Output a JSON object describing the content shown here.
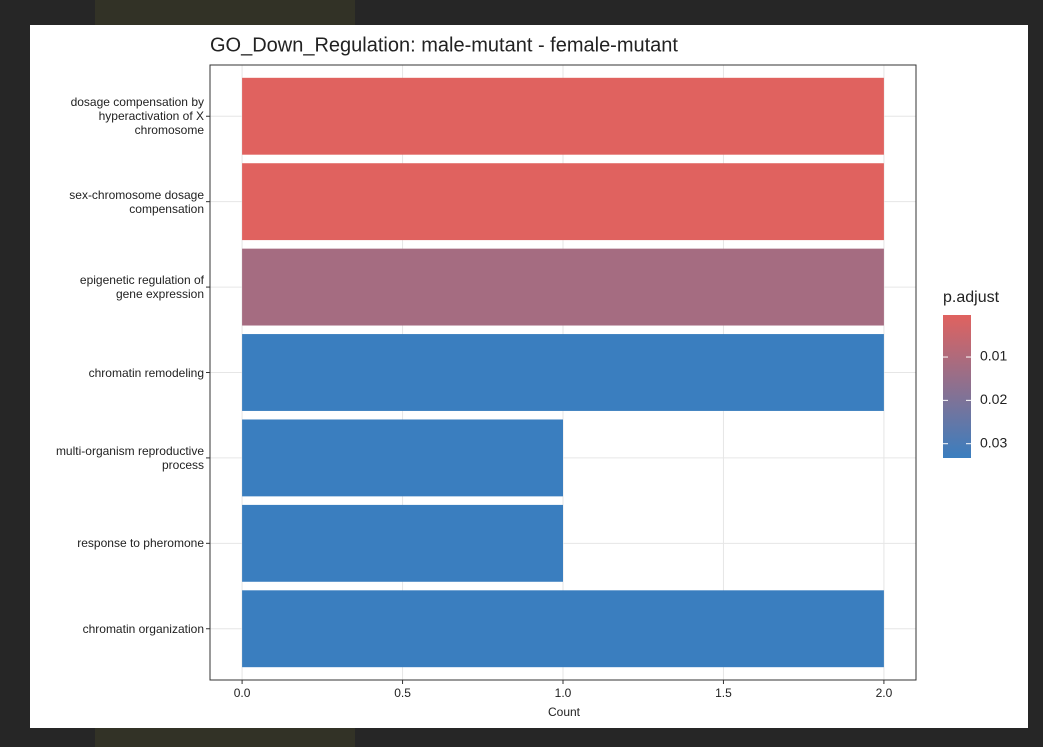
{
  "chart_data": {
    "type": "barh",
    "title": "GO_Down_Regulation: male-mutant - female-mutant",
    "xlabel": "Count",
    "categories": [
      "dosage compensation by\nhyperactivation of X\nchromosome",
      "sex-chromosome dosage\ncompensation",
      "epigenetic regulation of\ngene expression",
      "chromatin remodeling",
      "multi-organism reproductive\nprocess",
      "response to pheromone",
      "chromatin organization"
    ],
    "values": [
      2,
      2,
      2,
      2,
      1,
      1,
      2
    ],
    "p_adjust": [
      0.0003,
      0.0003,
      0.012,
      0.0333,
      0.0333,
      0.0333,
      0.0333
    ],
    "xlim": [
      -0.1,
      2.1
    ],
    "xticks": [
      {
        "value": 0,
        "label": "0.0"
      },
      {
        "value": 0.5,
        "label": "0.5"
      },
      {
        "value": 1,
        "label": "1.0"
      },
      {
        "value": 1.5,
        "label": "1.5"
      },
      {
        "value": 2,
        "label": "2.0"
      }
    ],
    "grid": true,
    "colorbar": {
      "title": "p.adjust",
      "lim": [
        0.0003,
        0.0333
      ],
      "ticks": [
        0.01,
        0.02,
        0.03
      ],
      "low_color": "#e0625f",
      "high_color": "#3a7ebf"
    }
  }
}
